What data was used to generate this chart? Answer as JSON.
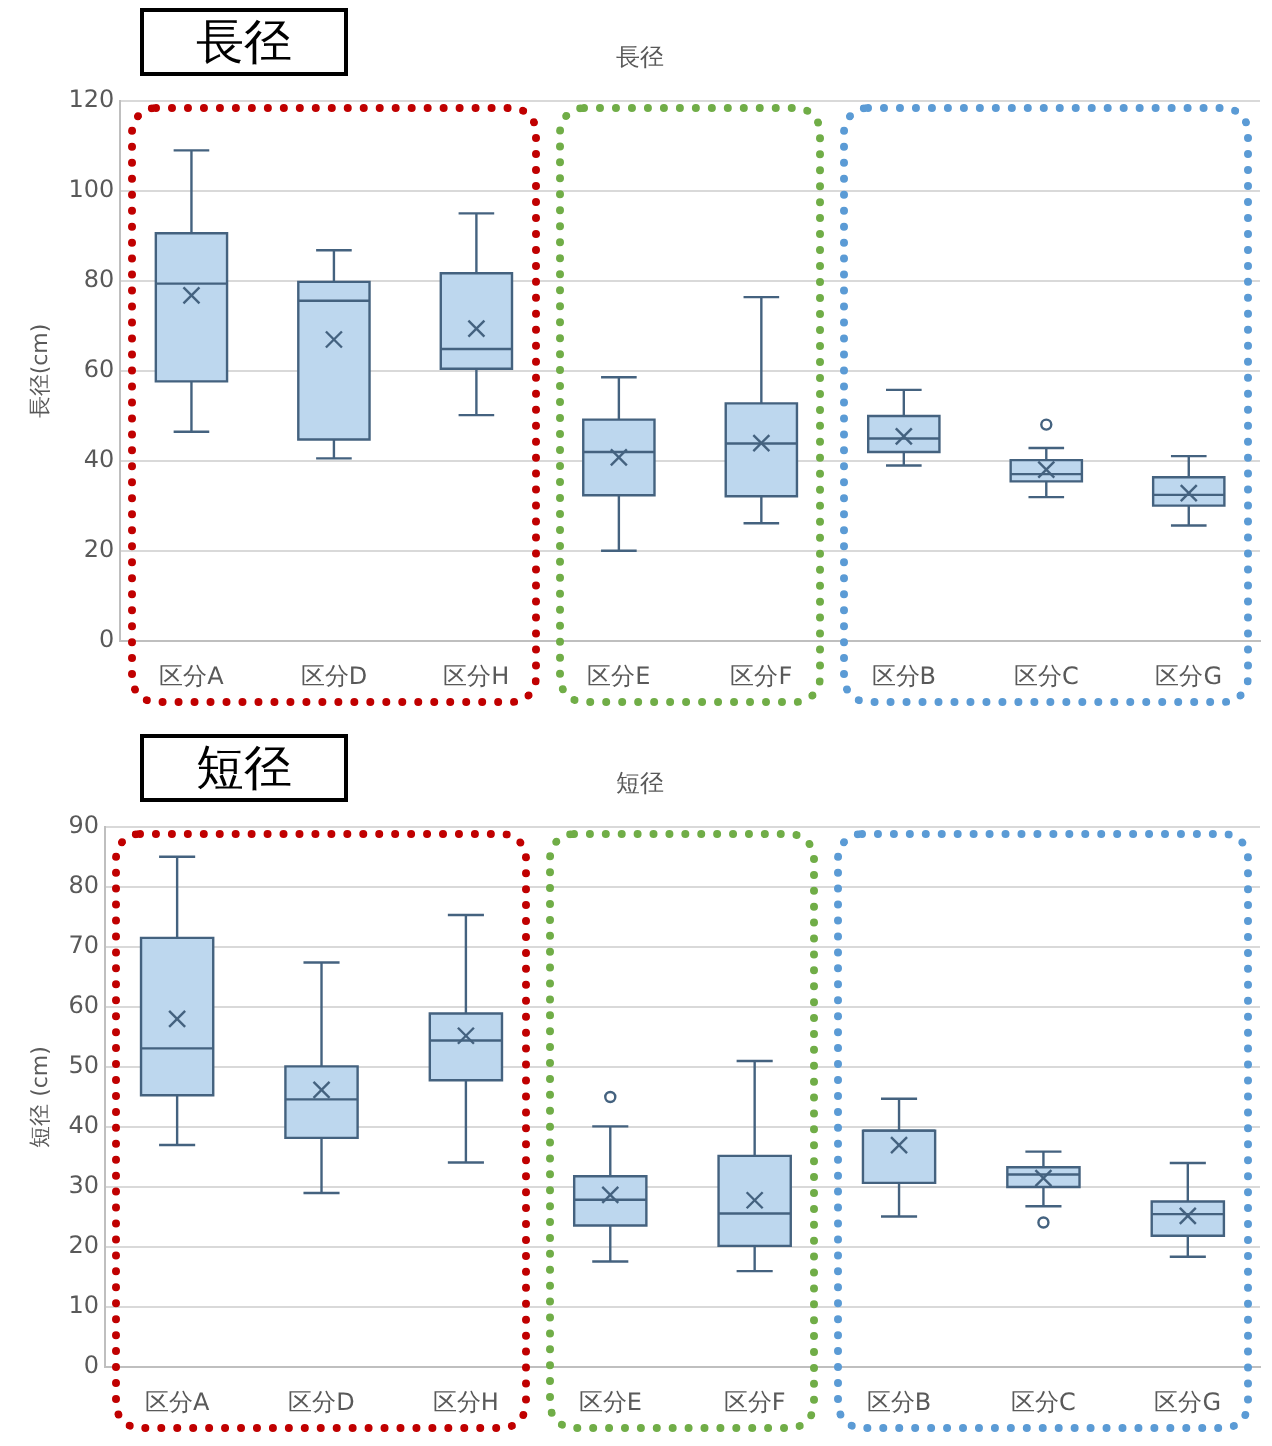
{
  "chart_data": [
    {
      "type": "box",
      "title": "長径",
      "ylabel": "長径(cm)",
      "annotations": [
        "長径"
      ],
      "categories": [
        "区分A",
        "区分D",
        "区分H",
        "区分E",
        "区分F",
        "区分B",
        "区分C",
        "区分G"
      ],
      "ylim": [
        0,
        120
      ],
      "yticks": [
        0,
        20,
        40,
        60,
        80,
        100,
        120
      ],
      "grid": "y",
      "legend": false,
      "series": [
        {
          "color": "#bdd7ee",
          "boxes": [
            {
              "low": 46.5,
              "q1": 57.7,
              "median": 79.4,
              "q3": 90.6,
              "high": 109,
              "mean": 76.8
            },
            {
              "low": 40.6,
              "q1": 44.8,
              "median": 75.6,
              "q3": 79.8,
              "high": 86.8,
              "mean": 67
            },
            {
              "low": 50.2,
              "q1": 60.5,
              "median": 64.9,
              "q3": 81.7,
              "high": 95,
              "mean": 69.4
            },
            {
              "low": 20.1,
              "q1": 32.4,
              "median": 42,
              "q3": 49.2,
              "high": 58.6,
              "mean": 40.8
            },
            {
              "low": 26.2,
              "q1": 32.2,
              "median": 43.9,
              "q3": 52.8,
              "high": 76.4,
              "mean": 44
            },
            {
              "low": 39,
              "q1": 42,
              "median": 45,
              "q3": 50,
              "high": 55.8,
              "mean": 45.5
            },
            {
              "low": 32,
              "q1": 35.5,
              "median": 37.1,
              "q3": 40.2,
              "high": 42.9,
              "mean": 38.1,
              "outliers": [
                48.1
              ]
            },
            {
              "low": 25.7,
              "q1": 30.1,
              "median": 32.5,
              "q3": 36.4,
              "high": 41.1,
              "mean": 32.9
            }
          ]
        }
      ]
    },
    {
      "type": "box",
      "title": "短径",
      "ylabel": "短径 (cm)",
      "annotations": [
        "短径"
      ],
      "categories": [
        "区分A",
        "区分D",
        "区分H",
        "区分E",
        "区分F",
        "区分B",
        "区分C",
        "区分G"
      ],
      "ylim": [
        0,
        90
      ],
      "yticks": [
        0,
        10,
        20,
        30,
        40,
        50,
        60,
        70,
        80,
        90
      ],
      "grid": "y",
      "legend": false,
      "series": [
        {
          "color": "#bdd7ee",
          "boxes": [
            {
              "low": 37,
              "q1": 45.3,
              "median": 53.1,
              "q3": 71.5,
              "high": 85,
              "mean": 58
            },
            {
              "low": 29,
              "q1": 38.2,
              "median": 44.6,
              "q3": 50.1,
              "high": 67.4,
              "mean": 46.2
            },
            {
              "low": 34.1,
              "q1": 47.8,
              "median": 54.4,
              "q3": 58.9,
              "high": 75.3,
              "mean": 55.2
            },
            {
              "low": 17.6,
              "q1": 23.6,
              "median": 27.9,
              "q3": 31.8,
              "high": 40.1,
              "mean": 28.7,
              "outliers": [
                45
              ]
            },
            {
              "low": 16,
              "q1": 20.2,
              "median": 25.6,
              "q3": 35.2,
              "high": 51,
              "mean": 27.8
            },
            {
              "low": 25.1,
              "q1": 30.7,
              "median": 39.4,
              "q3": 39.4,
              "high": 44.7,
              "mean": 37
            },
            {
              "low": 26.8,
              "q1": 30,
              "median": 32.1,
              "q3": 33.3,
              "high": 35.9,
              "mean": 31.5,
              "outliers": [
                24.1
              ]
            },
            {
              "low": 18.4,
              "q1": 21.9,
              "median": 25.5,
              "q3": 27.6,
              "high": 34,
              "mean": 25.2
            }
          ]
        }
      ]
    }
  ]
}
